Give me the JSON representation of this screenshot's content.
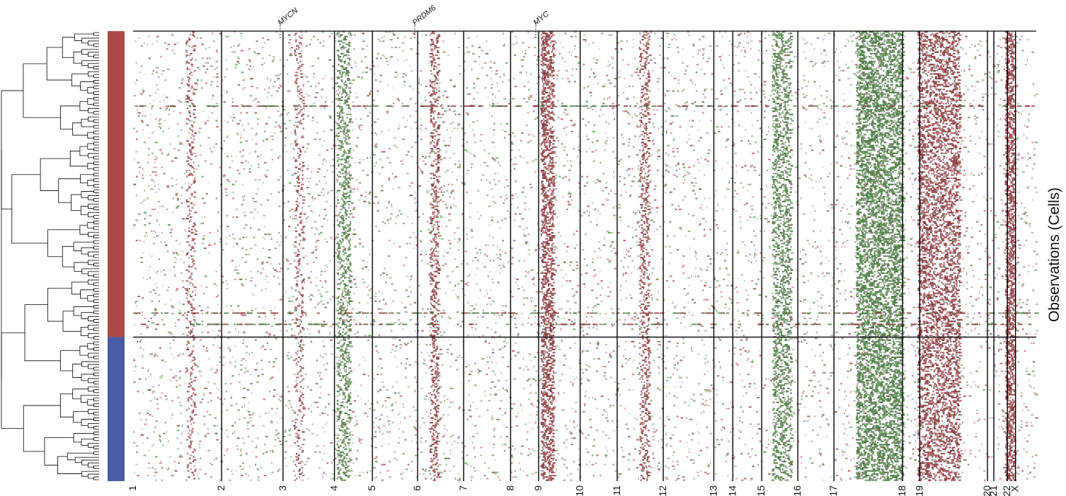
{
  "chart_data": {
    "type": "heatmap",
    "ylabel": "Observations (Cells)",
    "colors": {
      "gain": "#8b3a3e",
      "loss": "#4e7a45",
      "neutral": "#ffffff",
      "group_1": "#a94a48",
      "group_2": "#4b5ca6",
      "boundary": "#000000"
    },
    "chromosomes": [
      "1",
      "2",
      "3",
      "4",
      "5",
      "6",
      "7",
      "8",
      "9",
      "10",
      "11",
      "12",
      "13",
      "14",
      "15",
      "16",
      "17",
      "18",
      "19",
      "20",
      "21",
      "22",
      "X"
    ],
    "chromosome_spans": [
      [
        "1",
        0.0,
        0.098
      ],
      [
        "2",
        0.098,
        0.166
      ],
      [
        "3",
        0.166,
        0.223
      ],
      [
        "4",
        0.223,
        0.265
      ],
      [
        "5",
        0.265,
        0.315
      ],
      [
        "6",
        0.315,
        0.366
      ],
      [
        "7",
        0.366,
        0.418
      ],
      [
        "8",
        0.418,
        0.449
      ],
      [
        "9",
        0.449,
        0.495
      ],
      [
        "10",
        0.495,
        0.536
      ],
      [
        "11",
        0.536,
        0.587
      ],
      [
        "12",
        0.587,
        0.643
      ],
      [
        "13",
        0.643,
        0.664
      ],
      [
        "14",
        0.664,
        0.696
      ],
      [
        "15",
        0.696,
        0.736
      ],
      [
        "16",
        0.736,
        0.776
      ],
      [
        "17",
        0.776,
        0.852
      ],
      [
        "18",
        0.852,
        0.871
      ],
      [
        "19",
        0.871,
        0.946
      ],
      [
        "20",
        0.946,
        0.953
      ],
      [
        "21",
        0.953,
        0.968
      ],
      [
        "22",
        0.968,
        0.977
      ],
      [
        "X",
        0.977,
        1.0
      ]
    ],
    "genes": [
      {
        "name": "MYCN",
        "chromosome": "2"
      },
      {
        "name": "PRDM6",
        "chromosome": "5"
      },
      {
        "name": "MYC",
        "chromosome": "8"
      }
    ],
    "groups": [
      {
        "color": "#a94a48",
        "fraction": 0.68
      },
      {
        "color": "#4b5ca6",
        "fraction": 0.32
      }
    ],
    "cnv_regions": [
      {
        "start": 0.058,
        "end": 0.068,
        "kind": "gain",
        "strength": 0.35
      },
      {
        "start": 0.178,
        "end": 0.188,
        "kind": "gain",
        "strength": 0.35
      },
      {
        "start": 0.225,
        "end": 0.24,
        "kind": "loss",
        "strength": 0.45
      },
      {
        "start": 0.328,
        "end": 0.338,
        "kind": "gain",
        "strength": 0.55
      },
      {
        "start": 0.451,
        "end": 0.465,
        "kind": "gain",
        "strength": 0.9
      },
      {
        "start": 0.56,
        "end": 0.571,
        "kind": "gain",
        "strength": 0.45
      },
      {
        "start": 0.707,
        "end": 0.728,
        "kind": "loss",
        "strength": 0.55
      },
      {
        "start": 0.8,
        "end": 0.852,
        "kind": "loss",
        "strength": 0.85
      },
      {
        "start": 0.868,
        "end": 0.915,
        "kind": "gain",
        "strength": 0.65
      },
      {
        "start": 0.965,
        "end": 0.975,
        "kind": "gain",
        "strength": 0.9
      }
    ]
  }
}
